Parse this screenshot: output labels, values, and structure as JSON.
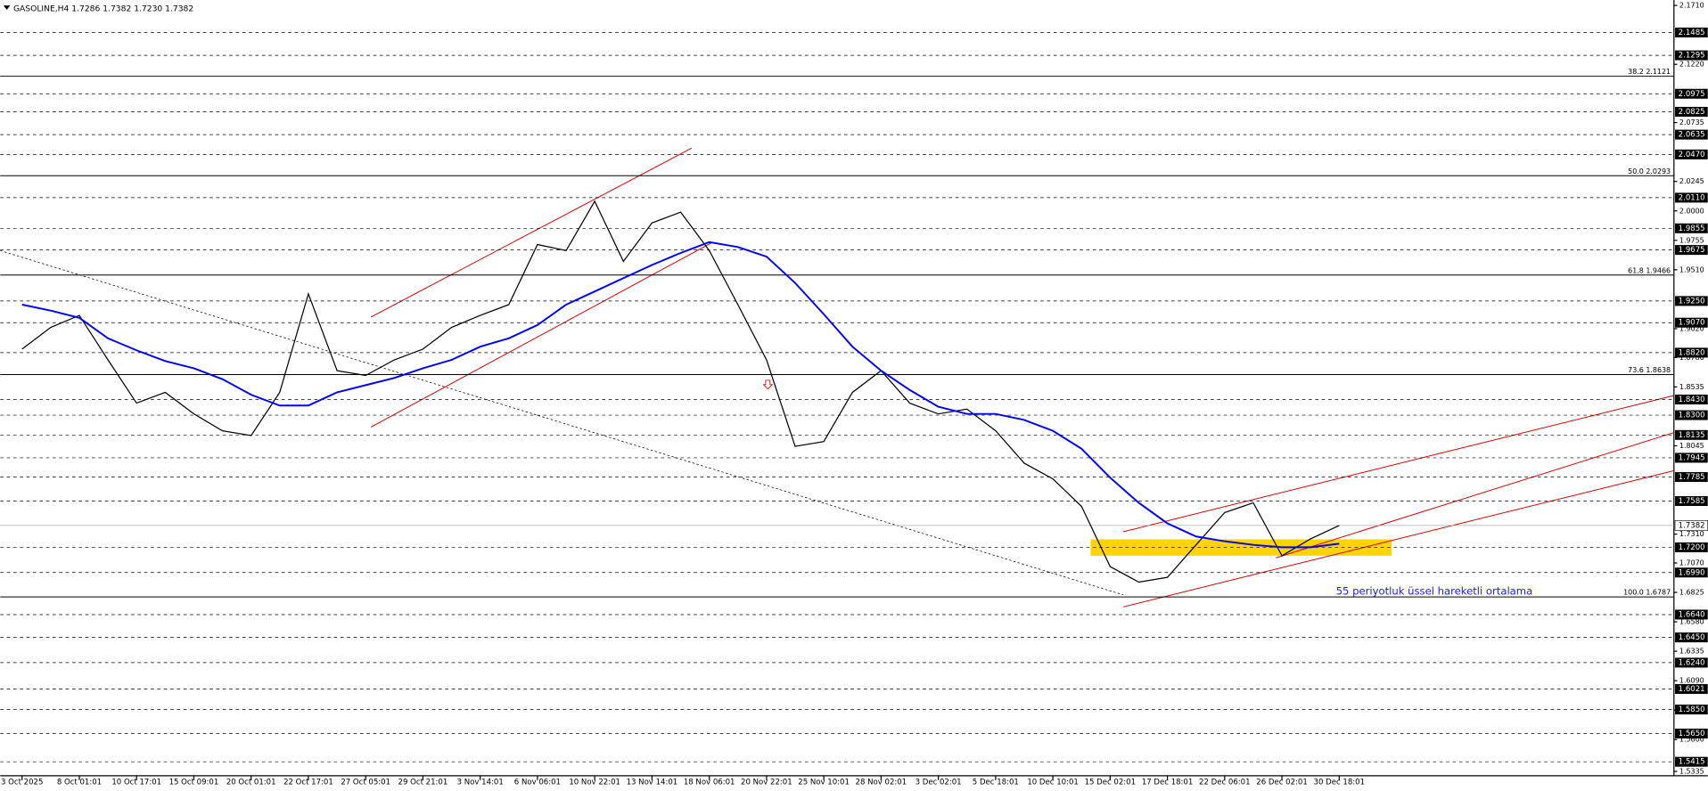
{
  "chart_data": {
    "type": "line",
    "title": "GASOLINE,H4  1.7286 1.7382 1.7230 1.7382",
    "annotation": "55 periyotluk üssel hareketli ortalama",
    "categories": [
      "3 Oct 2025",
      null,
      "8 Oct 01:01",
      null,
      "10 Oct 17:01",
      null,
      "15 Oct 09:01",
      null,
      "20 Oct 01:01",
      null,
      "22 Oct 17:01",
      null,
      "27 Oct 05:01",
      null,
      "29 Oct 21:01",
      null,
      "3 Nov 14:01",
      null,
      "6 Nov 06:01",
      null,
      "10 Nov 22:01",
      null,
      "13 Nov 14:01",
      null,
      "18 Nov 06:01",
      null,
      "20 Nov 22:01",
      null,
      "25 Nov 10:01",
      null,
      "28 Nov 02:01",
      null,
      "3 Dec 02:01",
      null,
      "5 Dec 18:01",
      null,
      "10 Dec 10:01",
      null,
      "15 Dec 02:01",
      null,
      "17 Dec 18:01",
      null,
      "22 Dec 06:01",
      null,
      "26 Dec 02:01",
      null,
      "30 Dec 18:01"
    ],
    "series": [
      {
        "color": "#000000",
        "values": [
          1.885,
          1.903,
          1.913,
          1.876,
          1.84,
          1.849,
          1.831,
          1.817,
          1.813,
          1.849,
          1.931,
          1.867,
          1.863,
          1.876,
          1.885,
          1.903,
          1.913,
          1.922,
          1.972,
          1.967,
          2.008,
          1.958,
          1.99,
          1.999,
          1.967,
          1.922,
          1.876,
          1.804,
          1.808,
          1.849,
          1.867,
          1.84,
          1.831,
          1.835,
          1.817,
          1.79,
          1.777,
          1.754,
          1.704,
          1.691,
          1.695,
          1.722,
          1.749,
          1.757,
          1.713,
          1.727,
          1.7382
        ]
      },
      {
        "color": "#0000ff",
        "values": [
          1.922,
          1.917,
          1.911,
          1.894,
          1.884,
          1.875,
          1.869,
          1.86,
          1.847,
          1.838,
          1.838,
          1.849,
          1.855,
          1.861,
          1.869,
          1.876,
          1.887,
          1.894,
          1.905,
          1.922,
          1.933,
          1.944,
          1.955,
          1.965,
          1.974,
          1.97,
          1.962,
          1.94,
          1.914,
          1.887,
          1.867,
          1.851,
          1.837,
          1.831,
          1.831,
          1.826,
          1.817,
          1.802,
          1.778,
          1.757,
          1.74,
          1.729,
          1.725,
          1.722,
          1.72,
          1.72,
          1.723
        ]
      }
    ],
    "ylim": [
      1.5335,
      {
        "value": 2.171,
        "label": "2.1710"
      }
    ],
    "yticks": [
      {
        "value": 2.171,
        "label": "2.1710"
      },
      {
        "value": 2.122,
        "label": "2.1220"
      },
      2.0735,
      2.0245,
      {
        "value": 2.0,
        "label": "2.0000"
      },
      1.9755,
      {
        "value": 1.951,
        "label": "1.9510"
      },
      {
        "value": 1.902,
        "label": "1.9020"
      },
      {
        "value": 1.878,
        "label": "1.8780"
      },
      1.8535,
      1.8045,
      {
        "value": 1.731,
        "label": "1.7310"
      },
      {
        "value": 1.707,
        "label": "1.7070"
      },
      1.6825,
      {
        "value": 1.658,
        "label": "1.6580"
      },
      1.6335,
      {
        "value": 1.609,
        "label": "1.6090"
      },
      1.5845,
      {
        "value": 1.56,
        "label": "1.5600"
      },
      1.5335
    ],
    "levels": [
      2.1485,
      2.1295,
      2.0975,
      2.0825,
      2.0635,
      {
        "value": 2.047,
        "label": "2.0470"
      },
      {
        "value": 2.011,
        "label": "2.0110"
      },
      1.9855,
      1.9675,
      {
        "value": 1.925,
        "label": "1.9250"
      },
      {
        "value": 1.907,
        "label": "1.9070"
      },
      {
        "value": 1.882,
        "label": "1.8820"
      },
      {
        "value": 1.843,
        "label": "1.8430"
      },
      {
        "value": 1.83,
        "label": "1.8300"
      },
      1.8135,
      1.7945,
      1.7785,
      1.7585,
      {
        "value": 1.72,
        "label": "1.7200"
      },
      {
        "value": 1.699,
        "label": "1.6990"
      },
      {
        "value": 1.664,
        "label": "1.6640"
      },
      {
        "value": 1.645,
        "label": "1.6450"
      },
      {
        "value": 1.624,
        "label": "1.6240"
      },
      1.6021,
      {
        "value": 1.585,
        "label": "1.5850"
      },
      {
        "value": 1.565,
        "label": "1.5650"
      },
      1.5415
    ],
    "fib_levels": [
      {
        "value": 2.1121,
        "label": "38.2 2.1121"
      },
      {
        "value": 2.0293,
        "label": "50.0 2.0293"
      },
      {
        "value": 1.9466,
        "label": "61.8 1.9466"
      },
      {
        "value": 1.8638,
        "label": "73.6 1.8638"
      },
      {
        "value": 1.6787,
        "label": "100.0 1.6787"
      }
    ],
    "last_price": 1.7382
  }
}
